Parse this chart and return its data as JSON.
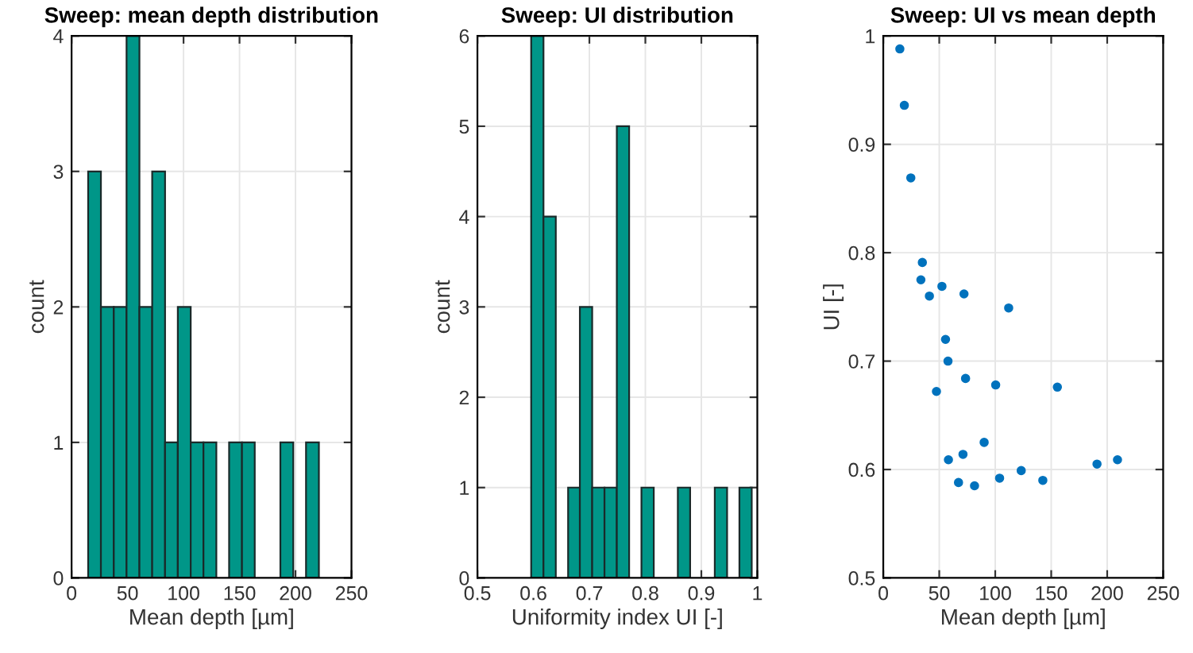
{
  "chart_data": [
    {
      "type": "histogram",
      "title": "Sweep: mean depth distribution",
      "xlabel": "Mean depth [µm]",
      "ylabel": "count",
      "bins": [
        14.8,
        26.2,
        37.7,
        49.1,
        60.6,
        72.0,
        83.5,
        94.9,
        106.4,
        117.8,
        129.3,
        140.7,
        152.2,
        163.6,
        186.5,
        198.0,
        209.4,
        220.9
      ],
      "values": [
        3,
        2,
        2,
        4,
        2,
        3,
        1,
        2,
        1,
        1,
        0,
        1,
        1,
        0,
        1,
        0,
        1
      ],
      "color": "#009688",
      "xlim": [
        0,
        250
      ],
      "xticks": [
        0,
        50,
        100,
        150,
        200,
        250
      ],
      "ylim": [
        0,
        4
      ],
      "yticks": [
        0,
        1,
        2,
        3,
        4
      ],
      "grid": true
    },
    {
      "type": "histogram",
      "title": "Sweep: UI distribution",
      "xlabel": "Uniformity index UI [-]",
      "ylabel": "count",
      "bins": [
        0.596,
        0.618,
        0.64,
        0.662,
        0.683,
        0.705,
        0.727,
        0.749,
        0.771,
        0.793,
        0.815,
        0.858,
        0.88,
        0.924,
        0.946,
        0.968,
        0.99
      ],
      "values": [
        6,
        4,
        0,
        1,
        3,
        1,
        1,
        5,
        0,
        1,
        0,
        1,
        0,
        1,
        0,
        1
      ],
      "color": "#009688",
      "xlim": [
        0.5,
        1
      ],
      "xticks": [
        0.5,
        0.6,
        0.7,
        0.8,
        0.9,
        1
      ],
      "ylim": [
        0,
        6
      ],
      "yticks": [
        0,
        1,
        2,
        3,
        4,
        5,
        6
      ],
      "grid": true
    },
    {
      "type": "scatter",
      "title": "Sweep: UI vs mean depth",
      "xlabel": "Mean depth [µm]",
      "ylabel": "UI [-]",
      "x": [
        14.8,
        18.8,
        24.6,
        34.9,
        33.6,
        41.2,
        52.4,
        72.1,
        112.0,
        55.6,
        57.8,
        73.5,
        47.5,
        100.4,
        155.5,
        90.1,
        58.2,
        71.2,
        67.2,
        81.5,
        103.9,
        123.2,
        142.5,
        190.9,
        209.2
      ],
      "values": [
        0.988,
        0.936,
        0.869,
        0.791,
        0.775,
        0.76,
        0.769,
        0.762,
        0.749,
        0.72,
        0.7,
        0.684,
        0.672,
        0.678,
        0.676,
        0.625,
        0.609,
        0.614,
        0.588,
        0.585,
        0.592,
        0.599,
        0.59,
        0.605,
        0.609
      ],
      "color": "#0072bd",
      "marker": "circle",
      "xlim": [
        0,
        250
      ],
      "xticks": [
        0,
        50,
        100,
        150,
        200,
        250
      ],
      "ylim": [
        0.5,
        1
      ],
      "yticks": [
        0.5,
        0.6,
        0.7,
        0.8,
        0.9,
        1
      ],
      "grid": true
    }
  ]
}
